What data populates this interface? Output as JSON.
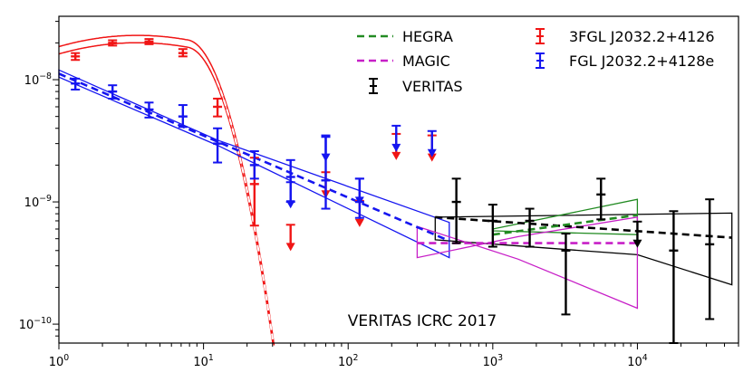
{
  "chart_data": {
    "type": "scatter",
    "title": "",
    "xlabel": "",
    "ylabel": "",
    "xscale": "log",
    "yscale": "log",
    "xlim": [
      1,
      50000
    ],
    "ylim": [
      7e-11,
      3.3e-08
    ],
    "x_ticks": [
      {
        "value": 1,
        "base": "10",
        "exp": "0"
      },
      {
        "value": 10,
        "base": "10",
        "exp": "1"
      },
      {
        "value": 100,
        "base": "10",
        "exp": "2"
      },
      {
        "value": 1000,
        "base": "10",
        "exp": "3"
      },
      {
        "value": 10000,
        "base": "10",
        "exp": "4"
      }
    ],
    "y_ticks": [
      {
        "value": 1e-10,
        "base": "10",
        "exp": "−10"
      },
      {
        "value": 1e-09,
        "base": "10",
        "exp": "−9"
      },
      {
        "value": 1e-08,
        "base": "10",
        "exp": "−8"
      }
    ],
    "annotation": "VERITAS ICRC 2017",
    "legend": {
      "position": "top-right",
      "entries": [
        {
          "label": "HEGRA",
          "kind": "dashed-line",
          "color": "#228B22"
        },
        {
          "label": "MAGIC",
          "kind": "dashed-line",
          "color": "#C71FC7"
        },
        {
          "label": "VERITAS",
          "kind": "errorbar",
          "color": "#000000"
        },
        {
          "label": "3FGL J2032.2+4126",
          "kind": "errorbar",
          "color": "#F01515"
        },
        {
          "label": "FGL J2032.2+4128e",
          "kind": "errorbar",
          "color": "#1515F0"
        }
      ]
    },
    "series": [
      {
        "name": "3FGL J2032.2+4126",
        "color": "#F01515",
        "model": {
          "type": "curved",
          "peak_x": 3.5,
          "peak_y": 2.15e-08,
          "a": 0.31,
          "b": 6.4,
          "band_shift": 0.03,
          "x_range": [
            1,
            36
          ]
        },
        "points": [
          {
            "x": 1.3,
            "y": 1.55e-08,
            "ylo": 1.45e-08,
            "yhi": 1.65e-08
          },
          {
            "x": 2.35,
            "y": 2e-08,
            "ylo": 1.9e-08,
            "yhi": 2.1e-08
          },
          {
            "x": 4.2,
            "y": 2.05e-08,
            "ylo": 1.95e-08,
            "yhi": 2.15e-08
          },
          {
            "x": 7.2,
            "y": 1.65e-08,
            "ylo": 1.55e-08,
            "yhi": 1.78e-08
          },
          {
            "x": 12.5,
            "y": 6e-09,
            "ylo": 5e-09,
            "yhi": 7e-09
          },
          {
            "x": 22.5,
            "y": 1.4e-09,
            "ylo": 6.4e-10,
            "yhi": 2.3e-09
          }
        ],
        "upper_limits": [
          {
            "x": 40,
            "y": 6.5e-10
          },
          {
            "x": 70,
            "y": 1.75e-09
          },
          {
            "x": 120,
            "y": 1.02e-09
          },
          {
            "x": 215,
            "y": 3.6e-09
          },
          {
            "x": 380,
            "y": 3.5e-09
          }
        ]
      },
      {
        "name": "FGL J2032.2+4128e",
        "color": "#1515F0",
        "model": {
          "type": "powerlaw",
          "x_range": [
            1,
            500
          ],
          "y_at_1": 1.12e-08,
          "y_at_500": 4.8e-10,
          "band": [
            [
              1,
              1.2e-08,
              1.05e-08
            ],
            [
              12.5,
              3.2e-09,
              2.9e-09
            ],
            [
              500,
              6.8e-10,
              3.5e-10
            ]
          ]
        },
        "points": [
          {
            "x": 1.3,
            "y": 9.3e-09,
            "ylo": 8.3e-09,
            "yhi": 1.02e-08
          },
          {
            "x": 2.35,
            "y": 8e-09,
            "ylo": 7e-09,
            "yhi": 9e-09
          },
          {
            "x": 4.2,
            "y": 5.7e-09,
            "ylo": 4.9e-09,
            "yhi": 6.5e-09
          },
          {
            "x": 7.2,
            "y": 5e-09,
            "ylo": 4.1e-09,
            "yhi": 6.2e-09
          },
          {
            "x": 12.5,
            "y": 3e-09,
            "ylo": 2.1e-09,
            "yhi": 4e-09
          },
          {
            "x": 22.5,
            "y": 2e-09,
            "ylo": 1.55e-09,
            "yhi": 2.6e-09
          },
          {
            "x": 40,
            "y": 1.6e-09,
            "ylo": 1e-09,
            "yhi": 2.2e-09
          },
          {
            "x": 70,
            "y": 1.5e-09,
            "ylo": 8.8e-10,
            "yhi": 3.4e-09
          },
          {
            "x": 120,
            "y": 1e-09,
            "ylo": 7.4e-10,
            "yhi": 1.55e-09
          }
        ],
        "upper_limits": [
          {
            "x": 40,
            "y": 1.45e-09
          },
          {
            "x": 70,
            "y": 3.5e-09
          },
          {
            "x": 120,
            "y": 1.55e-09
          },
          {
            "x": 215,
            "y": 4.2e-09
          },
          {
            "x": 380,
            "y": 3.8e-09
          }
        ]
      },
      {
        "name": "VERITAS",
        "color": "#000000",
        "model": {
          "type": "powerlaw",
          "x_range": [
            400,
            45000
          ],
          "y_start": 7.5e-10,
          "y_end": 5.1e-10,
          "box": [
            [
              400,
              7.5e-10
            ],
            [
              45000,
              8.1e-10
            ],
            [
              45000,
              2.1e-10
            ],
            [
              10000,
              3.7e-10
            ],
            [
              400,
              4.9e-10
            ]
          ]
        },
        "points": [
          {
            "x": 560,
            "y": 1e-09,
            "ylo": 4.6e-10,
            "yhi": 1.55e-09
          },
          {
            "x": 1000,
            "y": 7e-10,
            "ylo": 4.3e-10,
            "yhi": 9.5e-10
          },
          {
            "x": 1800,
            "y": 7e-10,
            "ylo": 4.3e-10,
            "yhi": 8.8e-10
          },
          {
            "x": 3200,
            "y": 4e-10,
            "ylo": 1.2e-10,
            "yhi": 5.5e-10
          },
          {
            "x": 5600,
            "y": 1.15e-09,
            "ylo": 7.2e-10,
            "yhi": 1.55e-09
          },
          {
            "x": 17800,
            "y": 4e-10,
            "ylo": 7e-11,
            "yhi": 8.4e-10
          },
          {
            "x": 31600,
            "y": 4.5e-10,
            "ylo": 1.1e-10,
            "yhi": 1.05e-09
          }
        ],
        "upper_limits": [
          {
            "x": 10000,
            "y": 6.9e-10
          }
        ]
      },
      {
        "name": "HEGRA",
        "color": "#228B22",
        "model": {
          "type": "powerlaw",
          "x_range": [
            1000,
            10000
          ],
          "y_start": 5.4e-10,
          "y_end": 7.8e-10,
          "box": [
            [
              1000,
              6e-10
            ],
            [
              10000,
              1.05e-09
            ],
            [
              10000,
              5.4e-10
            ],
            [
              1000,
              5.8e-10
            ]
          ]
        }
      },
      {
        "name": "MAGIC",
        "color": "#C71FC7",
        "model": {
          "type": "powerlaw",
          "x_range": [
            300,
            10000
          ],
          "y_start": 4.6e-10,
          "y_end": 4.6e-10,
          "box": [
            [
              300,
              6.3e-10
            ],
            [
              300,
              3.5e-10
            ],
            [
              1500,
              5.2e-10
            ],
            [
              10000,
              7.5e-10
            ],
            [
              10000,
              1.35e-10
            ],
            [
              1500,
              3.4e-10
            ]
          ]
        }
      }
    ]
  }
}
